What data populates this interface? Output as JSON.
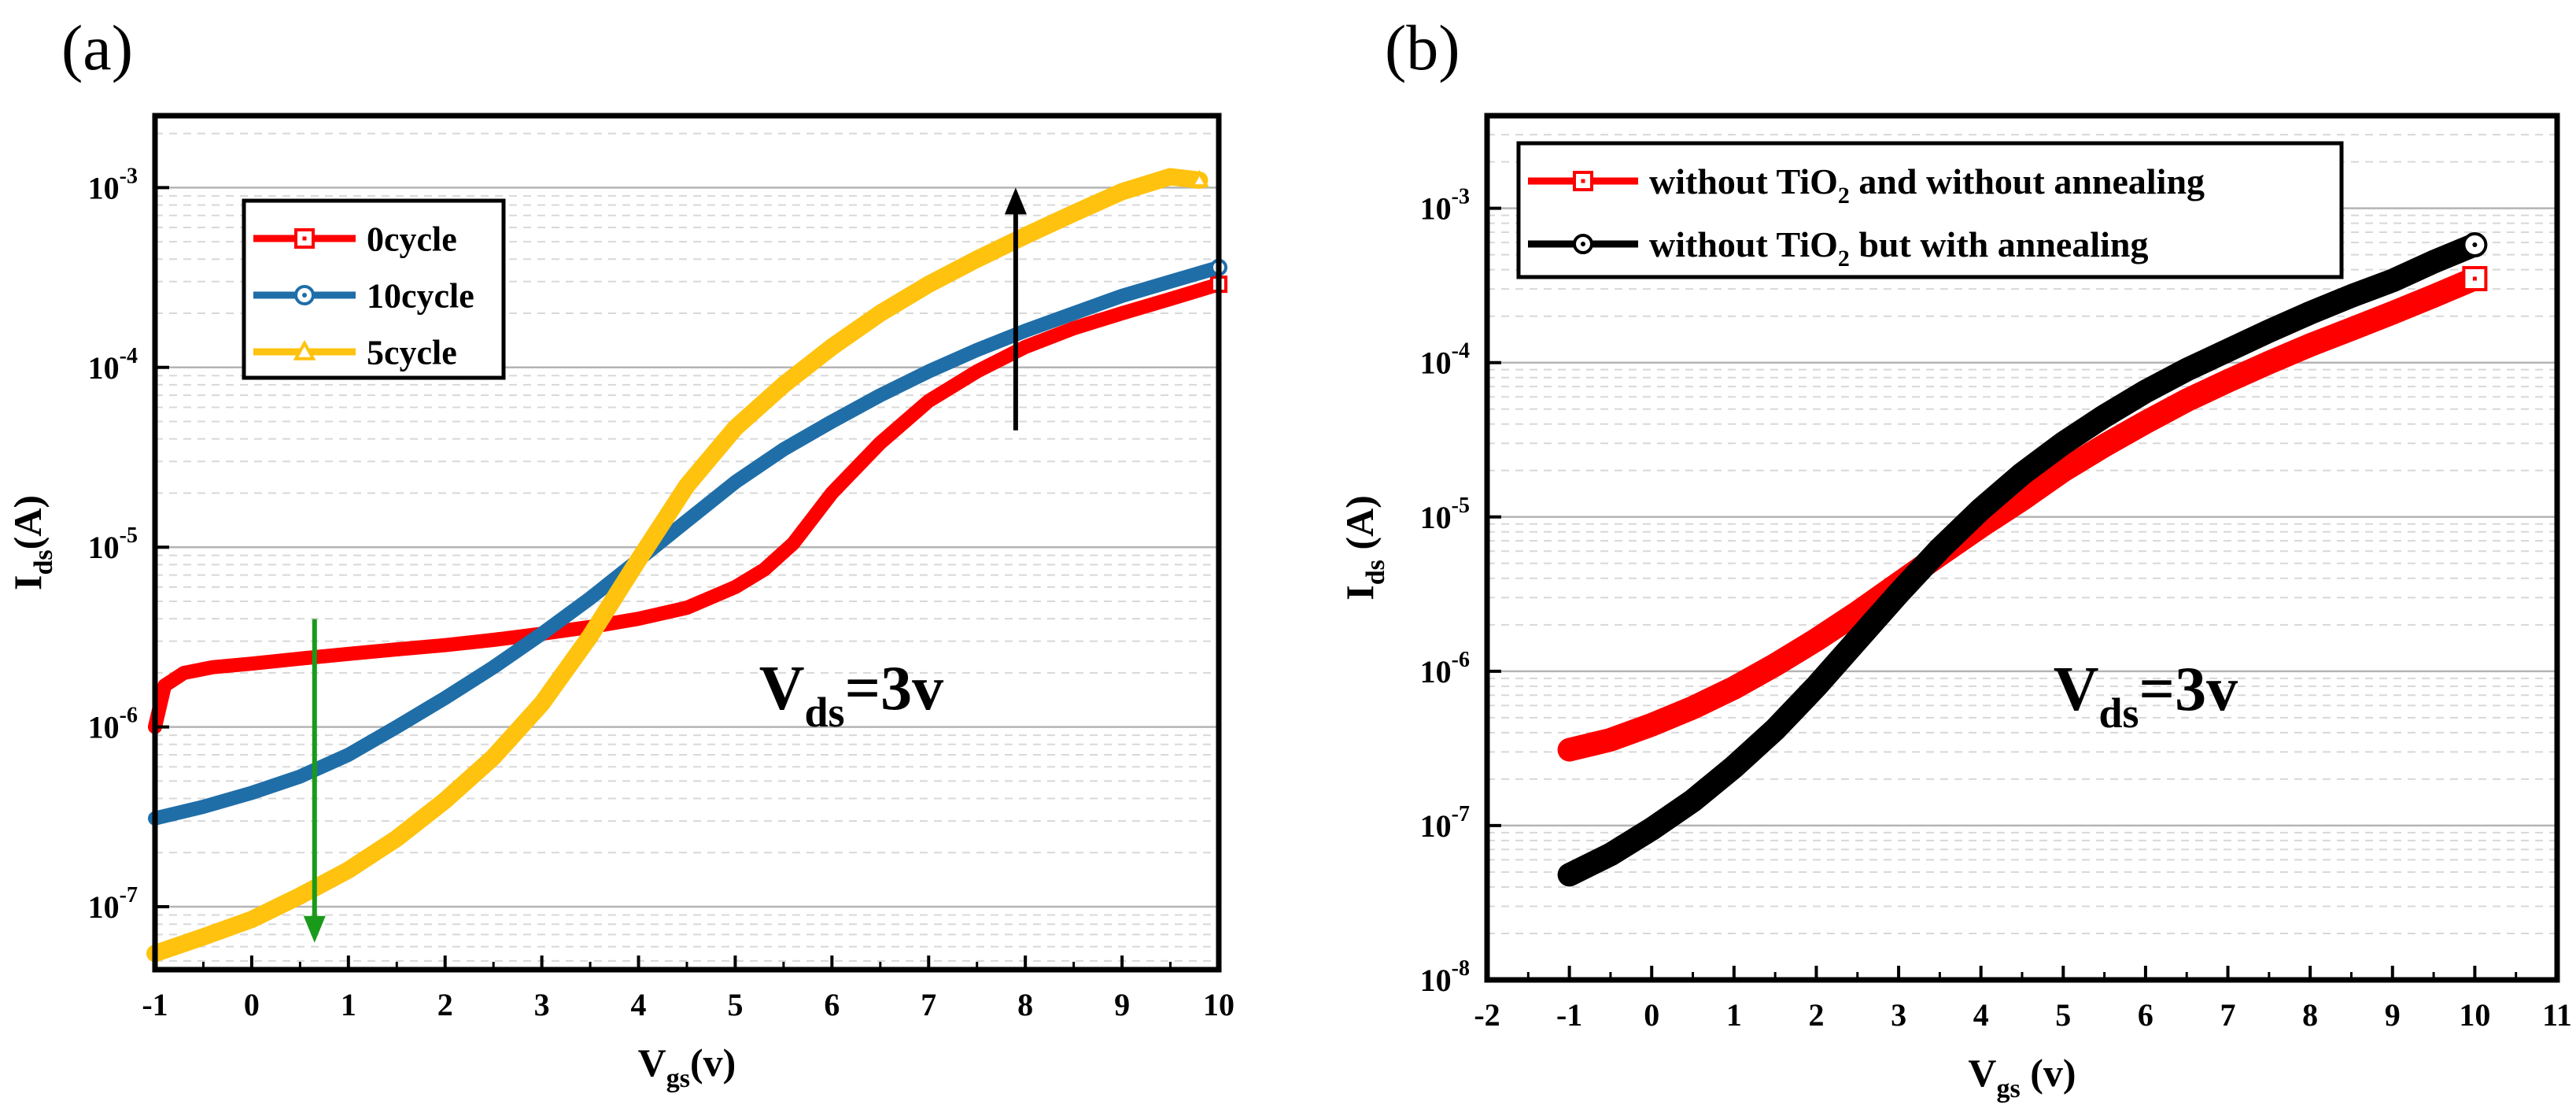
{
  "panel_labels": {
    "a": "(a)",
    "b": "(b)"
  },
  "chart_data": [
    {
      "type": "line",
      "panel": "(a)",
      "xlabel": "V",
      "xlabel_sub": "gs",
      "xlabel_suffix": "(v)",
      "ylabel": "I",
      "ylabel_sub": "ds",
      "ylabel_suffix": "(A)",
      "yscale": "log",
      "xlim": [
        -1,
        10
      ],
      "ylim_log10": [
        -7.35,
        -2.6
      ],
      "xticks": [
        -1,
        0,
        1,
        2,
        3,
        4,
        5,
        6,
        7,
        8,
        9,
        10
      ],
      "yticks": [
        {
          "base": "10",
          "exp": "-7",
          "log": -7
        },
        {
          "base": "10",
          "exp": "-6",
          "log": -6
        },
        {
          "base": "10",
          "exp": "-5",
          "log": -5
        },
        {
          "base": "10",
          "exp": "-4",
          "log": -4
        },
        {
          "base": "10",
          "exp": "-3",
          "log": -3
        }
      ],
      "grid": true,
      "annotation": {
        "main": "V",
        "sub": "ds",
        "tail": "=3v",
        "x": 6.2,
        "y_log": -5.9
      },
      "legend": {
        "position": "top-left"
      },
      "series": [
        {
          "name": "0cycle",
          "color": "#ff0000",
          "marker": "square",
          "x": [
            -1,
            -0.9,
            -0.7,
            -0.4,
            0,
            0.5,
            1,
            1.5,
            2,
            2.5,
            3,
            3.5,
            4,
            4.5,
            5,
            5.3,
            5.6,
            6,
            6.5,
            7,
            7.5,
            8,
            8.5,
            9,
            9.5,
            10
          ],
          "y": [
            1e-06,
            1.7e-06,
            2e-06,
            2.15e-06,
            2.25e-06,
            2.4e-06,
            2.55e-06,
            2.7e-06,
            2.85e-06,
            3.05e-06,
            3.3e-06,
            3.6e-06,
            4e-06,
            4.6e-06,
            6e-06,
            7.5e-06,
            1.05e-05,
            2e-05,
            3.8e-05,
            6.5e-05,
            9.5e-05,
            0.00013,
            0.000165,
            0.0002,
            0.00024,
            0.00029
          ]
        },
        {
          "name": "10cycle",
          "color": "#1f6ea8",
          "marker": "circle",
          "x": [
            -1,
            -0.5,
            0,
            0.5,
            1,
            1.5,
            2,
            2.5,
            3,
            3.5,
            4,
            4.5,
            5,
            5.5,
            6,
            6.5,
            7,
            7.5,
            8,
            8.5,
            9,
            9.5,
            10
          ],
          "y": [
            3.1e-07,
            3.6e-07,
            4.3e-07,
            5.3e-07,
            7e-07,
            1e-06,
            1.45e-06,
            2.15e-06,
            3.3e-06,
            5.2e-06,
            8.5e-06,
            1.4e-05,
            2.3e-05,
            3.5e-05,
            5e-05,
            7e-05,
            9.5e-05,
            0.000125,
            0.00016,
            0.0002,
            0.00025,
            0.0003,
            0.00036
          ]
        },
        {
          "name": "5cycle",
          "color": "#ffc20e",
          "marker": "triangle",
          "x": [
            -1,
            -0.5,
            0,
            0.5,
            1,
            1.5,
            2,
            2.5,
            3,
            3.5,
            4,
            4.5,
            5,
            5.5,
            6,
            6.5,
            7,
            7.5,
            8,
            8.5,
            9,
            9.5,
            9.8
          ],
          "y": [
            5.5e-08,
            6.8e-08,
            8.5e-08,
            1.15e-07,
            1.6e-07,
            2.4e-07,
            3.9e-07,
            6.8e-07,
            1.35e-06,
            3.2e-06,
            8.5e-06,
            2.2e-05,
            4.6e-05,
            8e-05,
            0.00013,
            0.0002,
            0.00029,
            0.0004,
            0.00054,
            0.00072,
            0.00095,
            0.00115,
            0.0011
          ]
        }
      ],
      "arrows": [
        {
          "name": "increase-arrow",
          "color": "#000000",
          "x": 7.9,
          "from_log": -4.35,
          "to_log": -3.0
        },
        {
          "name": "decrease-arrow",
          "color": "#1a9a1a",
          "x": 0.65,
          "from_log": -5.4,
          "to_log": -7.2
        }
      ]
    },
    {
      "type": "line",
      "panel": "(b)",
      "xlabel": "V",
      "xlabel_sub": "gs",
      "xlabel_suffix": " (v)",
      "ylabel": "I",
      "ylabel_sub": "ds",
      "ylabel_suffix": " (A)",
      "yscale": "log",
      "xlim": [
        -2,
        11
      ],
      "ylim_log10": [
        -8,
        -2.4
      ],
      "xticks": [
        -2,
        -1,
        0,
        1,
        2,
        3,
        4,
        5,
        6,
        7,
        8,
        9,
        10,
        11
      ],
      "yticks": [
        {
          "base": "10",
          "exp": "-8",
          "log": -8
        },
        {
          "base": "10",
          "exp": "-7",
          "log": -7
        },
        {
          "base": "10",
          "exp": "-6",
          "log": -6
        },
        {
          "base": "10",
          "exp": "-5",
          "log": -5
        },
        {
          "base": "10",
          "exp": "-4",
          "log": -4
        },
        {
          "base": "10",
          "exp": "-3",
          "log": -3
        }
      ],
      "grid": true,
      "annotation": {
        "main": "V",
        "sub": "ds",
        "tail": "=3v",
        "x": 6.0,
        "y_log": -6.25
      },
      "legend": {
        "position": "top-left"
      },
      "series": [
        {
          "name": "without TiO2 and without  annealing",
          "legend_parts": [
            "without TiO",
            "2",
            " and without  annealing"
          ],
          "color": "#ff0000",
          "marker": "square",
          "x": [
            -1,
            -0.5,
            0,
            0.5,
            1,
            1.5,
            2,
            2.5,
            3,
            3.5,
            4,
            4.5,
            5,
            5.5,
            6,
            6.5,
            7,
            7.5,
            8,
            8.5,
            9,
            9.5,
            10
          ],
          "y": [
            3.1e-07,
            3.6e-07,
            4.5e-07,
            5.8e-07,
            7.8e-07,
            1.1e-06,
            1.6e-06,
            2.4e-06,
            3.7e-06,
            5.7e-06,
            8.7e-06,
            1.3e-05,
            2e-05,
            2.9e-05,
            4.1e-05,
            5.7e-05,
            7.6e-05,
            0.0001,
            0.00013,
            0.000165,
            0.00021,
            0.00027,
            0.00035
          ]
        },
        {
          "name": "without TiO2 but with annealing",
          "legend_parts": [
            "without TiO",
            "2",
            " but with annealing"
          ],
          "color": "#000000",
          "marker": "circle",
          "x": [
            -1,
            -0.5,
            0,
            0.5,
            1,
            1.5,
            2,
            2.5,
            3,
            3.5,
            4,
            4.5,
            5,
            5.5,
            6,
            6.5,
            7,
            7.5,
            8,
            8.5,
            9,
            9.5,
            10
          ],
          "y": [
            4.8e-08,
            6.5e-08,
            9.5e-08,
            1.45e-07,
            2.4e-07,
            4.2e-07,
            8e-07,
            1.6e-06,
            3.2e-06,
            6.2e-06,
            1.12e-05,
            1.9e-05,
            3e-05,
            4.5e-05,
            6.5e-05,
            9e-05,
            0.00012,
            0.00016,
            0.00021,
            0.00027,
            0.00034,
            0.00045,
            0.00058
          ]
        }
      ],
      "arrows": []
    }
  ]
}
